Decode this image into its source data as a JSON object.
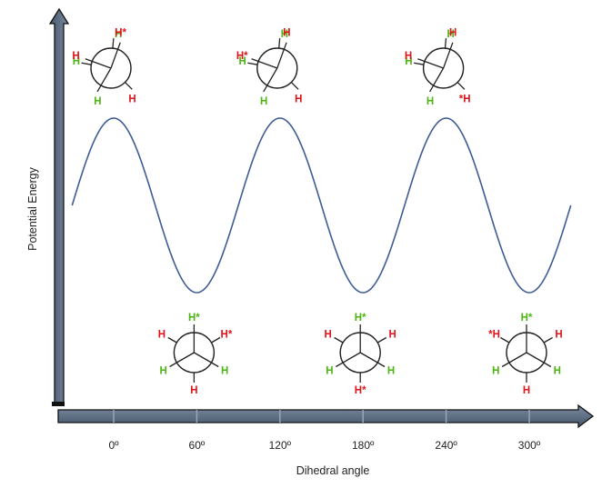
{
  "chart_data": {
    "type": "line",
    "xlabel": "Dihedral angle",
    "ylabel": "Potential Energy",
    "x_ticks": [
      "0º",
      "60º",
      "120º",
      "180º",
      "240º",
      "300º"
    ],
    "x_tick_values": [
      0,
      60,
      120,
      180,
      240,
      300
    ],
    "series": [
      {
        "x": [
          -30,
          0,
          60,
          120,
          180,
          240,
          300,
          330
        ],
        "y": [
          0.5,
          1,
          0,
          1,
          0,
          1,
          0,
          0.5
        ]
      }
    ],
    "grid": false
  },
  "colors": {
    "axis_fill": "#596a80",
    "curve": "#3e5c96",
    "atom_red": "#e0141b",
    "atom_green": "#4db511",
    "stroke": "#222222"
  },
  "eclipsed": [
    {
      "angle": 0,
      "front": [
        "H",
        "H",
        "H"
      ],
      "back": [
        "H*",
        "H",
        "H"
      ]
    },
    {
      "angle": 120,
      "front": [
        "H",
        "H",
        "H"
      ],
      "back": [
        "H",
        "H*",
        "H"
      ]
    },
    {
      "angle": 240,
      "front": [
        "H",
        "H",
        "H"
      ],
      "back": [
        "H",
        "H",
        "*H"
      ]
    }
  ],
  "staggered": [
    {
      "angle": 60,
      "front": [
        "H*",
        "H",
        "H"
      ],
      "back": [
        "H",
        "H*",
        "H"
      ]
    },
    {
      "angle": 180,
      "front": [
        "H*",
        "H",
        "H"
      ],
      "back": [
        "H",
        "H",
        "H*"
      ]
    },
    {
      "angle": 300,
      "front": [
        "H*",
        "H",
        "H"
      ],
      "back": [
        "*H",
        "H",
        "H"
      ]
    }
  ]
}
